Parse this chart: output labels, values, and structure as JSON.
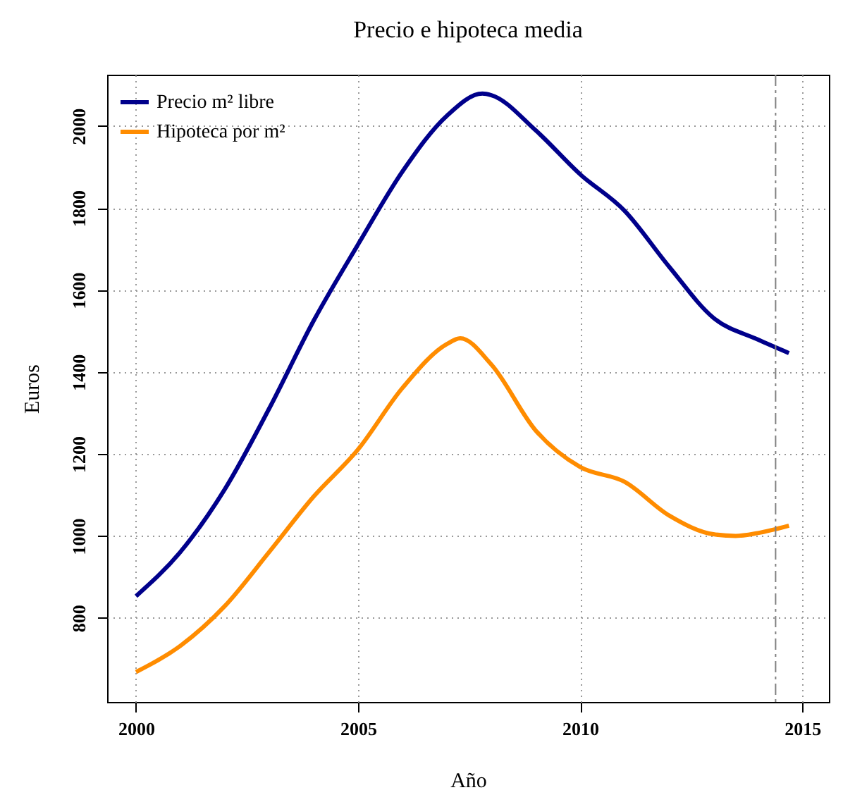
{
  "chart_data": {
    "type": "line",
    "title": "Precio e hipoteca media",
    "xlabel": "Año",
    "ylabel": "Euros",
    "xlim": [
      1999.35,
      2015.6
    ],
    "ylim": [
      595,
      2125
    ],
    "xticks": [
      2000,
      2005,
      2010,
      2015
    ],
    "yticks": [
      800,
      1000,
      1200,
      1400,
      1600,
      1800,
      2000
    ],
    "grid": true,
    "legend": "top left",
    "line_style": "solid",
    "series": [
      {
        "name": "Precio m² libre",
        "color": "#00008b",
        "x": [
          2000,
          2001,
          2002,
          2003,
          2004,
          2005,
          2006,
          2007,
          2007.8,
          2008,
          2009,
          2010,
          2011,
          2012,
          2013,
          2014,
          2014.7
        ],
        "values": [
          853,
          961,
          1114,
          1311,
          1525,
          1711,
          1889,
          2025,
          2079,
          2075,
          1989,
          1882,
          1793,
          1657,
          1532,
          1479,
          1446
        ]
      },
      {
        "name": "Hipoteca por m²",
        "color": "#ff8c00",
        "x": [
          2000,
          2001,
          2002,
          2003,
          2004,
          2005,
          2006,
          2007,
          2007.3,
          2008,
          2009,
          2010,
          2011,
          2012,
          2013,
          2013.5,
          2014,
          2014.7
        ],
        "values": [
          668,
          732,
          829,
          961,
          1096,
          1211,
          1361,
          1468,
          1482,
          1418,
          1257,
          1168,
          1132,
          1050,
          1004,
          1000,
          1007,
          1025
        ]
      }
    ],
    "ref_lines": [
      {
        "axis": "x",
        "value": 2014.4,
        "color": "#808080",
        "line_style": "dashed"
      }
    ]
  }
}
